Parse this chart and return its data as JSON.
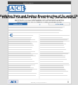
{
  "journal_name": "JACS",
  "journal_full": "Journal of the American Chemical Society",
  "title_line1": "Oxidation State and Surface Reconstruction of Cu under CO₂",
  "title_line2": "Reduction Conditions from In Situ X-ray Characterization",
  "header_bg": "#ffffff",
  "jacs_blue": "#1a5fa8",
  "top_bar_color": "#555555",
  "body_bg": "#ffffff",
  "page_bg": "#e0e0e0",
  "border_color": "#bbbbbb",
  "abstract_bg": "#f5f5f5",
  "btn1_bg": "#1a5fa8",
  "btn2_bg": "#4a9fd4",
  "text_gray": "#555555",
  "line_gray": "#cccccc"
}
